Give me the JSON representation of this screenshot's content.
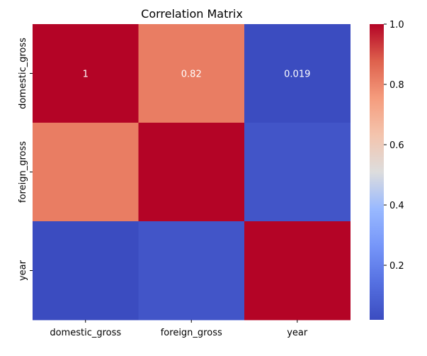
{
  "chart_data": {
    "type": "heatmap",
    "title": "Correlation Matrix",
    "xlabel": "",
    "ylabel": "",
    "x_categories": [
      "domestic_gross",
      "foreign_gross",
      "year"
    ],
    "y_categories": [
      "domestic_gross",
      "foreign_gross",
      "year"
    ],
    "values": [
      [
        1.0,
        0.82,
        0.019
      ],
      [
        0.82,
        1.0,
        0.05
      ],
      [
        0.019,
        0.05,
        1.0
      ]
    ],
    "annotations": [
      [
        "1",
        "0.82",
        "0.019"
      ],
      [
        "",
        "",
        ""
      ],
      [
        "",
        "",
        ""
      ]
    ],
    "colormap": "coolwarm",
    "colorbar": {
      "range": [
        0.019,
        1.0
      ],
      "ticks": [
        0.2,
        0.4,
        0.6,
        0.8,
        1.0
      ],
      "tick_labels": [
        "0.2",
        "0.4",
        "0.6",
        "0.8",
        "1.0"
      ]
    },
    "annotation_color": "#ffffff",
    "grid": false
  }
}
